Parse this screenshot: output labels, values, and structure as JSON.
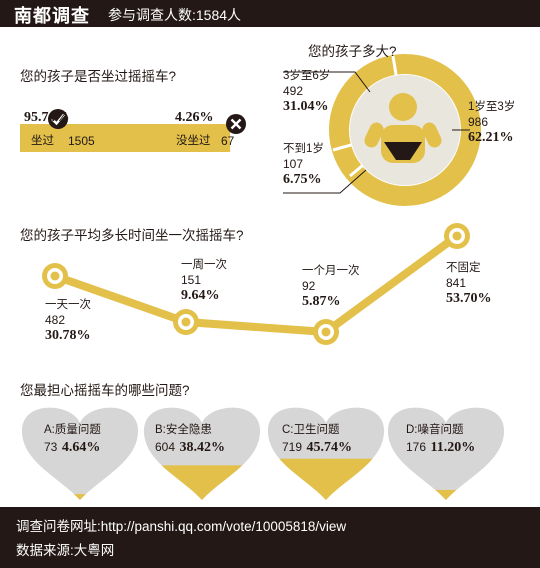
{
  "header": {
    "brand": "南都调查",
    "subtitle": "参与调查人数:1584人"
  },
  "colors": {
    "gold": "#E3C049",
    "dark": "#231815",
    "grey": "#D7D6D6",
    "muted": "#E9E6DE"
  },
  "q1": {
    "question": "您的孩子是否坐过摇摇车?",
    "yes_pct": "95.74%",
    "yes_label": "坐过",
    "yes_count": "1505",
    "no_pct": "4.26%",
    "no_label": "没坐过",
    "no_count": "67",
    "yes_fraction": 0.9574
  },
  "q2": {
    "question": "您的孩子多大?",
    "groups": [
      {
        "label": "3岁至6岁",
        "count": "492",
        "pct": "31.04%"
      },
      {
        "label": "1岁至3岁",
        "count": "986",
        "pct": "62.21%"
      },
      {
        "label": "不到1岁",
        "count": "107",
        "pct": "6.75%"
      }
    ]
  },
  "q3": {
    "question": "您的孩子平均多长时间坐一次摇摇车?",
    "points": [
      {
        "label": "一天一次",
        "count": "482",
        "pct": "30.78%"
      },
      {
        "label": "一周一次",
        "count": "151",
        "pct": "9.64%"
      },
      {
        "label": "一个月一次",
        "count": "92",
        "pct": "5.87%"
      },
      {
        "label": "不固定",
        "count": "841",
        "pct": "53.70%"
      }
    ]
  },
  "q4": {
    "question": "您最担心摇摇车的哪些问题?",
    "items": [
      {
        "label": "A:质量问题",
        "count": "73",
        "pct": "4.64%",
        "fraction": 0.0464
      },
      {
        "label": "B:安全隐患",
        "count": "604",
        "pct": "38.42%",
        "fraction": 0.3842
      },
      {
        "label": "C:卫生问题",
        "count": "719",
        "pct": "45.74%",
        "fraction": 0.4574
      },
      {
        "label": "D:噪音问题",
        "count": "176",
        "pct": "11.20%",
        "fraction": 0.112
      }
    ]
  },
  "footer": {
    "url_line": "调查问卷网址:http://panshi.qq.com/vote/10005818/view",
    "source_line": "数据来源:大粤网"
  },
  "chart_data": [
    {
      "type": "bar",
      "question": "您的孩子是否坐过摇摇车?",
      "categories": [
        "坐过",
        "没坐过"
      ],
      "values": [
        1505,
        67
      ],
      "percent": [
        95.74,
        4.26
      ]
    },
    {
      "type": "pie",
      "question": "您的孩子多大?",
      "categories": [
        "3岁至6岁",
        "1岁至3岁",
        "不到1岁"
      ],
      "values": [
        492,
        986,
        107
      ],
      "percent": [
        31.04,
        62.21,
        6.75
      ]
    },
    {
      "type": "line",
      "question": "您的孩子平均多长时间坐一次摇摇车?",
      "categories": [
        "一天一次",
        "一周一次",
        "一个月一次",
        "不固定"
      ],
      "values": [
        482,
        151,
        92,
        841
      ],
      "percent": [
        30.78,
        9.64,
        5.87,
        53.7
      ]
    },
    {
      "type": "bar",
      "question": "您最担心摇摇车的哪些问题?",
      "categories": [
        "A:质量问题",
        "B:安全隐患",
        "C:卫生问题",
        "D:噪音问题"
      ],
      "values": [
        73,
        604,
        719,
        176
      ],
      "percent": [
        4.64,
        38.42,
        45.74,
        11.2
      ]
    }
  ]
}
